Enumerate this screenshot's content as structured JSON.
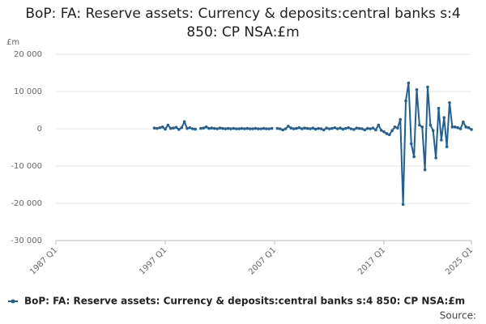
{
  "chart_data": {
    "type": "line",
    "title": "BoP: FA: Reserve assets: Currency & deposits:central banks s:4 850: CP NSA:£m",
    "y_unit": "£m",
    "source": "Source:",
    "x": [
      "1996 Q1",
      "1996 Q2",
      "1996 Q3",
      "1996 Q4",
      "1997 Q1",
      "1997 Q2",
      "1997 Q3",
      "1997 Q4",
      "1998 Q1",
      "1998 Q2",
      "1998 Q3",
      "1998 Q4",
      "1999 Q1",
      "1999 Q2",
      "1999 Q3",
      "1999 Q4",
      "2000 Q1",
      "2000 Q2",
      "2000 Q3",
      "2000 Q4",
      "2001 Q1",
      "2001 Q2",
      "2001 Q3",
      "2001 Q4",
      "2002 Q1",
      "2002 Q2",
      "2002 Q3",
      "2002 Q4",
      "2003 Q1",
      "2003 Q2",
      "2003 Q3",
      "2003 Q4",
      "2004 Q1",
      "2004 Q2",
      "2004 Q3",
      "2004 Q4",
      "2005 Q1",
      "2005 Q2",
      "2005 Q3",
      "2005 Q4",
      "2006 Q1",
      "2006 Q2",
      "2006 Q3",
      "2006 Q4",
      "2007 Q1",
      "2007 Q2",
      "2007 Q3",
      "2007 Q4",
      "2008 Q1",
      "2008 Q2",
      "2008 Q3",
      "2008 Q4",
      "2009 Q1",
      "2009 Q2",
      "2009 Q3",
      "2009 Q4",
      "2010 Q1",
      "2010 Q2",
      "2010 Q3",
      "2010 Q4",
      "2011 Q1",
      "2011 Q2",
      "2011 Q3",
      "2011 Q4",
      "2012 Q1",
      "2012 Q2",
      "2012 Q3",
      "2012 Q4",
      "2013 Q1",
      "2013 Q2",
      "2013 Q3",
      "2013 Q4",
      "2014 Q1",
      "2014 Q2",
      "2014 Q3",
      "2014 Q4",
      "2015 Q1",
      "2015 Q2",
      "2015 Q3",
      "2015 Q4",
      "2016 Q1",
      "2016 Q2",
      "2016 Q3",
      "2016 Q4",
      "2017 Q1",
      "2017 Q2",
      "2017 Q3",
      "2017 Q4",
      "2018 Q1",
      "2018 Q2",
      "2018 Q3",
      "2018 Q4",
      "2019 Q1",
      "2019 Q2",
      "2019 Q3",
      "2019 Q4",
      "2020 Q1",
      "2020 Q2",
      "2020 Q3",
      "2020 Q4",
      "2021 Q1",
      "2021 Q2",
      "2021 Q3",
      "2021 Q4",
      "2022 Q1",
      "2022 Q2",
      "2022 Q3",
      "2022 Q4",
      "2023 Q1",
      "2023 Q2",
      "2023 Q3",
      "2023 Q4",
      "2024 Q1",
      "2024 Q2",
      "2024 Q3",
      "2024 Q4",
      "2025 Q1"
    ],
    "series": [
      {
        "name": "BoP: FA: Reserve assets: Currency & deposits:central banks s:4 850: CP NSA:£m",
        "color": "#206095",
        "values": [
          200,
          100,
          300,
          500,
          -100,
          1000,
          100,
          200,
          400,
          -200,
          300,
          1900,
          100,
          300,
          0,
          -100,
          null,
          100,
          200,
          500,
          100,
          200,
          100,
          0,
          200,
          100,
          0,
          100,
          0,
          100,
          0,
          0,
          100,
          0,
          100,
          0,
          0,
          100,
          0,
          0,
          100,
          0,
          0,
          100,
          null,
          100,
          0,
          -300,
          0,
          700,
          200,
          0,
          100,
          300,
          0,
          200,
          100,
          0,
          200,
          -100,
          100,
          0,
          -300,
          200,
          0,
          100,
          300,
          0,
          200,
          -100,
          100,
          300,
          0,
          -200,
          200,
          100,
          0,
          -300,
          100,
          0,
          200,
          -300,
          1000,
          -400,
          -800,
          -1300,
          -1600,
          -500,
          500,
          200,
          2500,
          -20300,
          7500,
          12300,
          -4000,
          -7500,
          10500,
          1000,
          500,
          -11000,
          11200,
          1000,
          -500,
          -7800,
          5500,
          -3000,
          3000,
          -4800,
          7000,
          500,
          500,
          300,
          0,
          1800,
          500,
          300,
          -200
        ]
      }
    ],
    "xlim": [
      "1987 Q1",
      "2025 Q1"
    ],
    "xticks": [
      "1987 Q1",
      "1997 Q1",
      "2007 Q1",
      "2017 Q1",
      "2025 Q1"
    ],
    "ylim": [
      -30000,
      20000
    ],
    "yticks": [
      {
        "value": -30000,
        "label": "-30 000"
      },
      {
        "value": -20000,
        "label": "-20 000"
      },
      {
        "value": -10000,
        "label": "-10 000"
      },
      0,
      {
        "value": 10000,
        "label": "10 000"
      },
      {
        "value": 20000,
        "label": "20 000"
      }
    ],
    "grid": true
  }
}
